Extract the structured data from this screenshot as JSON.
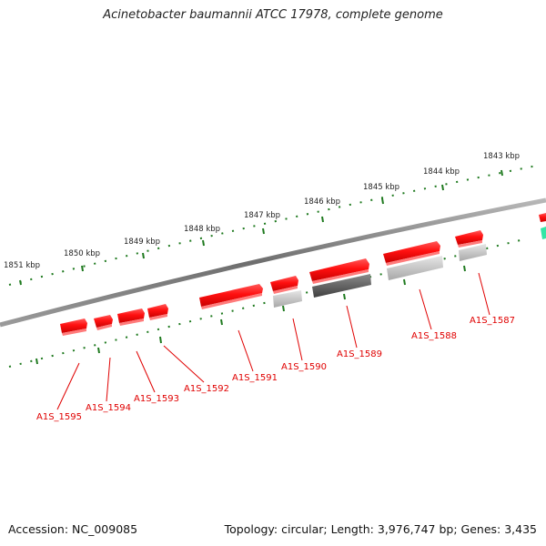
{
  "title": "Acinetobacter baumannii ATCC 17978, complete genome",
  "footer": {
    "accession": "Accession: NC_009085",
    "summary": "Topology: circular; Length: 3,976,747 bp; Genes: 3,435"
  },
  "colors": {
    "forward_gene": "#ff1a1a",
    "reverse_gene_light": "#c8c8c8",
    "reverse_gene_dark": "#606060",
    "backbone": "#8a8a8a",
    "tick": "#1f7a1f",
    "label": "#e00000",
    "partial_feature": "#33e6a6"
  },
  "scale_labels": [
    "1851 kbp",
    "1850 kbp",
    "1849 kbp",
    "1848 kbp",
    "1847 kbp",
    "1846 kbp",
    "1845 kbp",
    "1844 kbp",
    "1843 kbp"
  ],
  "gene_labels": [
    "A1S_1595",
    "A1S_1594",
    "A1S_1593",
    "A1S_1592",
    "A1S_1591",
    "A1S_1590",
    "A1S_1589",
    "A1S_1588",
    "A1S_1587"
  ]
}
